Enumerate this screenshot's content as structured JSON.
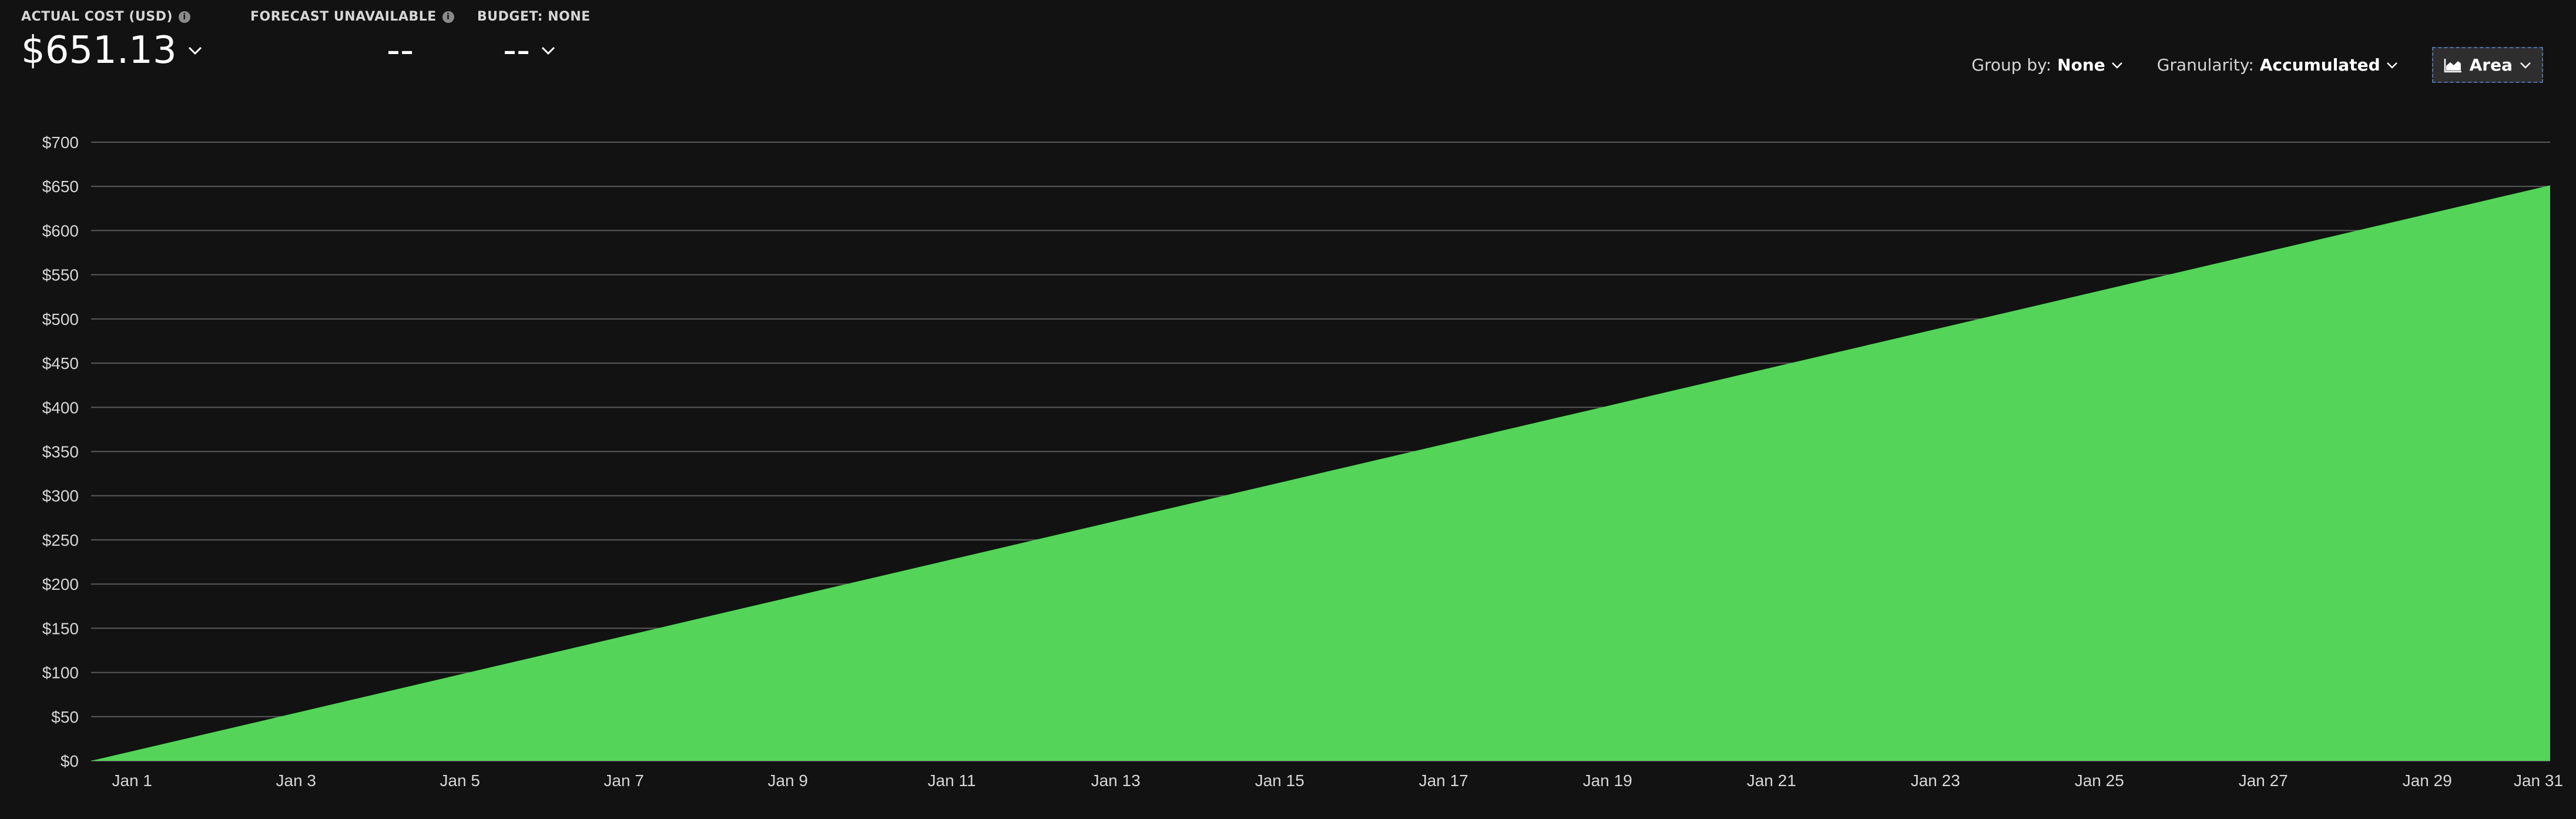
{
  "kpis": {
    "actual_cost": {
      "label": "ACTUAL COST (USD)",
      "value": "$651.13"
    },
    "forecast": {
      "label": "FORECAST UNAVAILABLE",
      "value": "--"
    },
    "budget": {
      "label": "BUDGET: NONE",
      "value": "--"
    }
  },
  "toolbar": {
    "group_by_label": "Group by:",
    "group_by_value": "None",
    "granularity_label": "Granularity:",
    "granularity_value": "Accumulated",
    "view_label": "Area"
  },
  "colors": {
    "background": "#121212",
    "area_fill": "#55d45a",
    "gridline": "#5a5a5a"
  },
  "chart_data": {
    "type": "area",
    "x": [
      "Jan 1",
      "Jan 2",
      "Jan 3",
      "Jan 4",
      "Jan 5",
      "Jan 6",
      "Jan 7",
      "Jan 8",
      "Jan 9",
      "Jan 10",
      "Jan 11",
      "Jan 12",
      "Jan 13",
      "Jan 14",
      "Jan 15",
      "Jan 16",
      "Jan 17",
      "Jan 18",
      "Jan 19",
      "Jan 20",
      "Jan 21",
      "Jan 22",
      "Jan 23",
      "Jan 24",
      "Jan 25",
      "Jan 26",
      "Jan 27",
      "Jan 28",
      "Jan 29",
      "Jan 30",
      "Jan 31"
    ],
    "values": [
      0,
      21.7,
      43.41,
      65.11,
      86.82,
      108.52,
      130.23,
      151.93,
      173.63,
      195.34,
      217.04,
      238.75,
      260.45,
      282.16,
      303.86,
      325.57,
      347.27,
      368.97,
      390.68,
      412.38,
      434.09,
      455.79,
      477.5,
      499.2,
      520.9,
      542.61,
      564.31,
      586.02,
      607.72,
      629.43,
      651.13
    ],
    "x_tick_labels": [
      "Jan 1",
      "Jan 3",
      "Jan 5",
      "Jan 7",
      "Jan 9",
      "Jan 11",
      "Jan 13",
      "Jan 15",
      "Jan 17",
      "Jan 19",
      "Jan 21",
      "Jan 23",
      "Jan 25",
      "Jan 27",
      "Jan 29",
      "Jan 31"
    ],
    "y_ticks": [
      0,
      50,
      100,
      150,
      200,
      250,
      300,
      350,
      400,
      450,
      500,
      550,
      600,
      650,
      700
    ],
    "y_tick_labels": [
      "$0",
      "$50",
      "$100",
      "$150",
      "$200",
      "$250",
      "$300",
      "$350",
      "$400",
      "$450",
      "$500",
      "$550",
      "$600",
      "$650",
      "$700"
    ],
    "ylim": [
      0,
      700
    ],
    "grid": true,
    "legend": "none"
  }
}
